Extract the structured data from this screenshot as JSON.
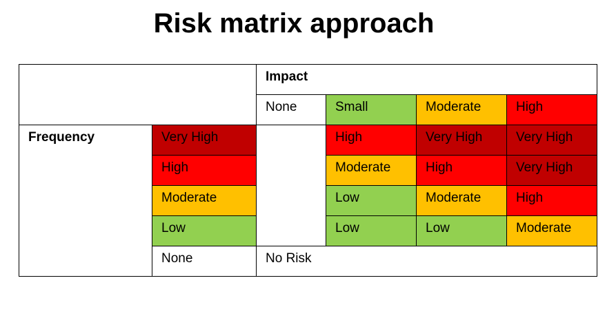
{
  "title": "Risk matrix approach",
  "impact": {
    "header": "Impact",
    "levels": [
      "None",
      "Small",
      "Moderate",
      "High"
    ]
  },
  "frequency": {
    "header": "Frequency",
    "levels": [
      "Very High",
      "High",
      "Moderate",
      "Low",
      "None"
    ]
  },
  "matrix": {
    "rows": [
      [
        "High",
        "Very High",
        "Very High"
      ],
      [
        "Moderate",
        "High",
        "Very High"
      ],
      [
        "Low",
        "Moderate",
        "High"
      ],
      [
        "Low",
        "Low",
        "Moderate"
      ]
    ],
    "no_risk": "No Risk"
  },
  "colors": {
    "Very High": "#c00000",
    "High": "#ff0000",
    "Moderate": "#ffc000",
    "Low": "#92d050",
    "Small": "#92d050",
    "None": "#ffffff"
  }
}
